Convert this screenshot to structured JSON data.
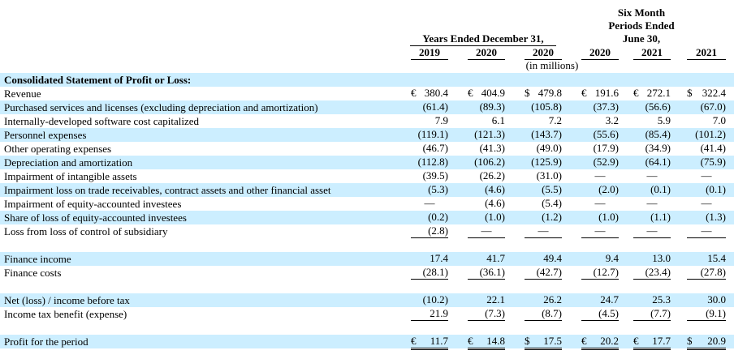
{
  "header": {
    "group_left": "Years Ended December 31,",
    "group_right_l1": "Six Month",
    "group_right_l2": "Periods Ended",
    "group_right_l3": "June 30,",
    "years": [
      "2019",
      "2020",
      "2020",
      "2020",
      "2021",
      "2021"
    ],
    "unit": "(in millions)"
  },
  "section_title": "Consolidated Statement of Profit or Loss:",
  "rows": [
    {
      "label": "Revenue",
      "cells": [
        [
          "€",
          "380.4"
        ],
        [
          "€",
          "404.9"
        ],
        [
          "$",
          "479.8"
        ],
        [
          "€",
          "191.6"
        ],
        [
          "€",
          "272.1"
        ],
        [
          "$",
          "322.4"
        ]
      ]
    },
    {
      "label": "Purchased services and licenses (excluding depreciation and amortization)",
      "cells": [
        [
          "",
          "(61.4)"
        ],
        [
          "",
          "(89.3)"
        ],
        [
          "",
          "(105.8)"
        ],
        [
          "",
          "(37.3)"
        ],
        [
          "",
          "(56.6)"
        ],
        [
          "",
          "(67.0)"
        ]
      ]
    },
    {
      "label": "Internally-developed software cost capitalized",
      "cells": [
        [
          "",
          "7.9"
        ],
        [
          "",
          "6.1"
        ],
        [
          "",
          "7.2"
        ],
        [
          "",
          "3.2"
        ],
        [
          "",
          "5.9"
        ],
        [
          "",
          "7.0"
        ]
      ]
    },
    {
      "label": "Personnel expenses",
      "cells": [
        [
          "",
          "(119.1)"
        ],
        [
          "",
          "(121.3)"
        ],
        [
          "",
          "(143.7)"
        ],
        [
          "",
          "(55.6)"
        ],
        [
          "",
          "(85.4)"
        ],
        [
          "",
          "(101.2)"
        ]
      ]
    },
    {
      "label": "Other operating expenses",
      "cells": [
        [
          "",
          "(46.7)"
        ],
        [
          "",
          "(41.3)"
        ],
        [
          "",
          "(49.0)"
        ],
        [
          "",
          "(17.9)"
        ],
        [
          "",
          "(34.9)"
        ],
        [
          "",
          "(41.4)"
        ]
      ]
    },
    {
      "label": "Depreciation and amortization",
      "cells": [
        [
          "",
          "(112.8)"
        ],
        [
          "",
          "(106.2)"
        ],
        [
          "",
          "(125.9)"
        ],
        [
          "",
          "(52.9)"
        ],
        [
          "",
          "(64.1)"
        ],
        [
          "",
          "(75.9)"
        ]
      ]
    },
    {
      "label": "Impairment of intangible assets",
      "cells": [
        [
          "",
          "(39.5)"
        ],
        [
          "",
          "(26.2)"
        ],
        [
          "",
          "(31.0)"
        ],
        [
          "",
          "—"
        ],
        [
          "",
          "—"
        ],
        [
          "",
          "—"
        ]
      ]
    },
    {
      "label": "Impairment loss on trade receivables, contract assets and other financial asset",
      "cells": [
        [
          "",
          "(5.3)"
        ],
        [
          "",
          "(4.6)"
        ],
        [
          "",
          "(5.5)"
        ],
        [
          "",
          "(2.0)"
        ],
        [
          "",
          "(0.1)"
        ],
        [
          "",
          "(0.1)"
        ]
      ]
    },
    {
      "label": "Impairment of equity-accounted investees",
      "cells": [
        [
          "",
          "—"
        ],
        [
          "",
          "(4.6)"
        ],
        [
          "",
          "(5.4)"
        ],
        [
          "",
          "—"
        ],
        [
          "",
          "—"
        ],
        [
          "",
          "—"
        ]
      ]
    },
    {
      "label": "Share of loss of equity-accounted investees",
      "cells": [
        [
          "",
          "(0.2)"
        ],
        [
          "",
          "(1.0)"
        ],
        [
          "",
          "(1.2)"
        ],
        [
          "",
          "(1.0)"
        ],
        [
          "",
          "(1.1)"
        ],
        [
          "",
          "(1.3)"
        ]
      ]
    },
    {
      "label": "Loss from loss of control of subsidiary",
      "cells": [
        [
          "",
          "(2.8)"
        ],
        [
          "",
          "—"
        ],
        [
          "",
          "—"
        ],
        [
          "",
          "—"
        ],
        [
          "",
          "—"
        ],
        [
          "",
          "—"
        ]
      ]
    },
    {
      "label": "Finance income",
      "cells": [
        [
          "",
          "17.4"
        ],
        [
          "",
          "41.7"
        ],
        [
          "",
          "49.4"
        ],
        [
          "",
          "9.4"
        ],
        [
          "",
          "13.0"
        ],
        [
          "",
          "15.4"
        ]
      ]
    },
    {
      "label": "Finance costs",
      "cells": [
        [
          "",
          "(28.1)"
        ],
        [
          "",
          "(36.1)"
        ],
        [
          "",
          "(42.7)"
        ],
        [
          "",
          "(12.7)"
        ],
        [
          "",
          "(23.4)"
        ],
        [
          "",
          "(27.8)"
        ]
      ]
    },
    {
      "label": "Net (loss) / income before tax",
      "cells": [
        [
          "",
          "(10.2)"
        ],
        [
          "",
          "22.1"
        ],
        [
          "",
          "26.2"
        ],
        [
          "",
          "24.7"
        ],
        [
          "",
          "25.3"
        ],
        [
          "",
          "30.0"
        ]
      ]
    },
    {
      "label": "Income tax benefit (expense)",
      "cells": [
        [
          "",
          "21.9"
        ],
        [
          "",
          "(7.3)"
        ],
        [
          "",
          "(8.7)"
        ],
        [
          "",
          "(4.5)"
        ],
        [
          "",
          "(7.7)"
        ],
        [
          "",
          "(9.1)"
        ]
      ]
    },
    {
      "label": "Profit for the period",
      "cells": [
        [
          "€",
          "11.7"
        ],
        [
          "€",
          "14.8"
        ],
        [
          "$",
          "17.5"
        ],
        [
          "€",
          "20.2"
        ],
        [
          "€",
          "17.7"
        ],
        [
          "$",
          "20.9"
        ]
      ]
    }
  ]
}
